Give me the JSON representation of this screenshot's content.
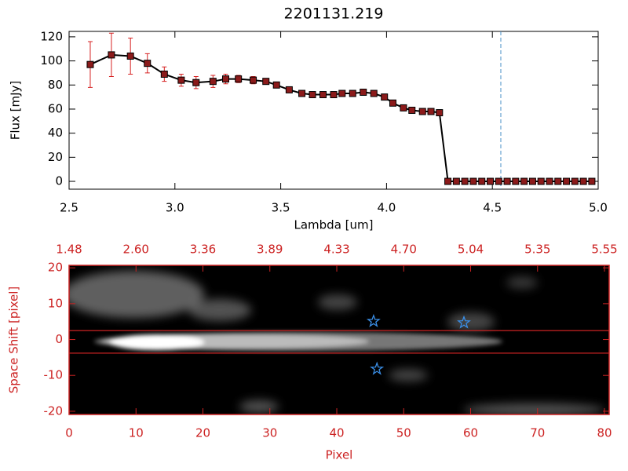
{
  "chart_data": [
    {
      "type": "line",
      "title": "2201131.219",
      "xlabel": "Lambda [um]",
      "ylabel": "Flux [mJy]",
      "x": [
        2.6,
        2.7,
        2.79,
        2.87,
        2.95,
        3.03,
        3.1,
        3.18,
        3.24,
        3.3,
        3.37,
        3.43,
        3.48,
        3.54,
        3.6,
        3.65,
        3.7,
        3.75,
        3.79,
        3.84,
        3.89,
        3.94,
        3.99,
        4.03,
        4.08,
        4.12,
        4.17,
        4.21,
        4.25,
        4.29,
        4.33,
        4.37,
        4.41,
        4.45,
        4.49,
        4.53,
        4.57,
        4.61,
        4.65,
        4.69,
        4.73,
        4.77,
        4.81,
        4.85,
        4.89,
        4.93,
        4.97
      ],
      "values": [
        97,
        105,
        104,
        98,
        89,
        84,
        82,
        83,
        85,
        85,
        84,
        83,
        80,
        76,
        73,
        72,
        72,
        72,
        73,
        73,
        74,
        73,
        70,
        65,
        61,
        59,
        58,
        58,
        57,
        0,
        0,
        0,
        0,
        0,
        0,
        0,
        0,
        0,
        0,
        0,
        0,
        0,
        0,
        0,
        0,
        0,
        0
      ],
      "errors": [
        19,
        18,
        15,
        8,
        6,
        5,
        5,
        5,
        4,
        3,
        3,
        2,
        2,
        2,
        2,
        2,
        2,
        2,
        2,
        2,
        2,
        2,
        2,
        2,
        2,
        2,
        2,
        2,
        2,
        0,
        0,
        0,
        0,
        0,
        0,
        0,
        0,
        0,
        0,
        0,
        0,
        0,
        0,
        0,
        0,
        0,
        0
      ],
      "color": "#000000",
      "marker_color": "#8b1a1a",
      "error_color": "#d62020",
      "vline": 4.54,
      "vline_color": "#4a90c8",
      "xlim": [
        2.5,
        5.0
      ],
      "ylim": [
        -6.5,
        124.5
      ],
      "xticks": [
        2.5,
        {
          "value": 3,
          "label": "3.0"
        },
        3.5,
        {
          "value": 4,
          "label": "4.0"
        },
        4.5,
        {
          "value": 5,
          "label": "5.0"
        }
      ],
      "yticks": [
        0,
        20,
        40,
        60,
        80,
        100,
        120
      ]
    },
    {
      "type": "image",
      "xlabel": "Pixel",
      "ylabel": "Space Shift [pixel]",
      "color": "#cc2222",
      "xlim": [
        0,
        80.7
      ],
      "ylim": [
        -20.9,
        20.7
      ],
      "xticks": [
        0,
        10,
        20,
        30,
        40,
        50,
        60,
        70,
        80
      ],
      "yticks": [
        -20,
        -10,
        0,
        10,
        20
      ],
      "x2ticks": [
        {
          "value": 0,
          "label": "1.48"
        },
        {
          "value": 10,
          "label": "2.60"
        },
        {
          "value": 20,
          "label": "3.36"
        },
        {
          "value": 30,
          "label": "3.89"
        },
        {
          "value": 40,
          "label": "4.33"
        },
        {
          "value": 50,
          "label": "4.70"
        },
        {
          "value": 60,
          "label": "5.04"
        },
        {
          "value": 70,
          "label": "5.35"
        },
        {
          "value": 80,
          "label": "5.55"
        }
      ],
      "hlines": [
        2.5,
        -3.8
      ],
      "stars": {
        "x": [
          45.5,
          59.0,
          46.0
        ],
        "y": [
          5.1,
          4.7,
          -8.2
        ],
        "color": "#3a8ee6"
      }
    }
  ]
}
